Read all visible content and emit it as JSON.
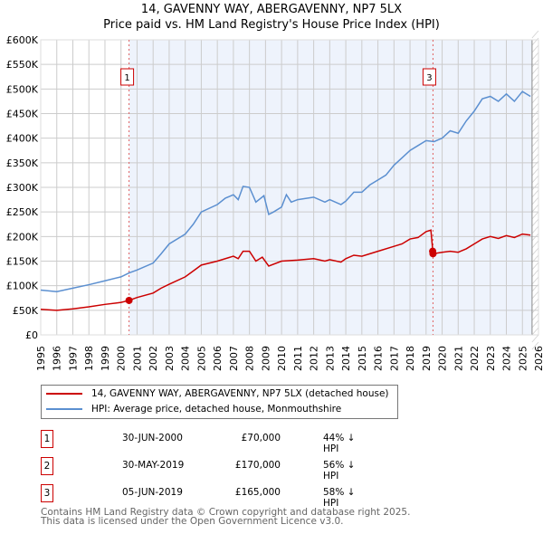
{
  "chart_data": {
    "type": "line",
    "title": "14, GAVENNY WAY, ABERGAVENNY, NP7 5LX",
    "subtitle": "Price paid vs. HM Land Registry's House Price Index (HPI)",
    "xlim": [
      1995,
      2026
    ],
    "ylim": [
      0,
      600000
    ],
    "x_ticks": [
      "1995",
      "1996",
      "1997",
      "1998",
      "1999",
      "2000",
      "2001",
      "2002",
      "2003",
      "2004",
      "2005",
      "2006",
      "2007",
      "2008",
      "2009",
      "2010",
      "2011",
      "2012",
      "2013",
      "2014",
      "2015",
      "2016",
      "2017",
      "2018",
      "2019",
      "2020",
      "2021",
      "2022",
      "2023",
      "2024",
      "2025",
      "2026"
    ],
    "y_ticks": [
      {
        "v": 0,
        "label": "£0"
      },
      {
        "v": 50000,
        "label": "£50K"
      },
      {
        "v": 100000,
        "label": "£100K"
      },
      {
        "v": 150000,
        "label": "£150K"
      },
      {
        "v": 200000,
        "label": "£200K"
      },
      {
        "v": 250000,
        "label": "£250K"
      },
      {
        "v": 300000,
        "label": "£300K"
      },
      {
        "v": 350000,
        "label": "£350K"
      },
      {
        "v": 400000,
        "label": "£400K"
      },
      {
        "v": 450000,
        "label": "£450K"
      },
      {
        "v": 500000,
        "label": "£500K"
      },
      {
        "v": 550000,
        "label": "£550K"
      },
      {
        "v": 600000,
        "label": "£600K"
      }
    ],
    "grid": true,
    "series": [
      {
        "name": "14, GAVENNY WAY, ABERGAVENNY, NP7 5LX (detached house)",
        "color": "#cc0000",
        "points": [
          [
            1995,
            52000
          ],
          [
            1996,
            50000
          ],
          [
            1997,
            53000
          ],
          [
            1998,
            57000
          ],
          [
            1999,
            62000
          ],
          [
            2000,
            66000
          ],
          [
            2000.5,
            70000
          ],
          [
            2001,
            76000
          ],
          [
            2002,
            85000
          ],
          [
            2002.5,
            95000
          ],
          [
            2003,
            103000
          ],
          [
            2004,
            118000
          ],
          [
            2004.5,
            130000
          ],
          [
            2005,
            142000
          ],
          [
            2006,
            150000
          ],
          [
            2007,
            160000
          ],
          [
            2007.3,
            155000
          ],
          [
            2007.6,
            170000
          ],
          [
            2008,
            170000
          ],
          [
            2008.4,
            150000
          ],
          [
            2008.8,
            158000
          ],
          [
            2009.2,
            140000
          ],
          [
            2010,
            150000
          ],
          [
            2011,
            152000
          ],
          [
            2012,
            155000
          ],
          [
            2012.7,
            150000
          ],
          [
            2013,
            153000
          ],
          [
            2013.7,
            148000
          ],
          [
            2014,
            155000
          ],
          [
            2014.5,
            162000
          ],
          [
            2015,
            160000
          ],
          [
            2016,
            170000
          ],
          [
            2017,
            180000
          ],
          [
            2017.5,
            185000
          ],
          [
            2018,
            195000
          ],
          [
            2018.5,
            198000
          ],
          [
            2019,
            210000
          ],
          [
            2019.3,
            213000
          ],
          [
            2019.42,
            170000
          ],
          [
            2019.43,
            165000
          ],
          [
            2020,
            168000
          ],
          [
            2020.5,
            170000
          ],
          [
            2021,
            168000
          ],
          [
            2021.5,
            175000
          ],
          [
            2022,
            185000
          ],
          [
            2022.5,
            195000
          ],
          [
            2023,
            200000
          ],
          [
            2023.5,
            196000
          ],
          [
            2024,
            202000
          ],
          [
            2024.5,
            198000
          ],
          [
            2025,
            205000
          ],
          [
            2025.5,
            203000
          ]
        ]
      },
      {
        "name": "HPI: Average price, detached house, Monmouthshire",
        "color": "#5b8fd0",
        "points": [
          [
            1995,
            91000
          ],
          [
            1996,
            88000
          ],
          [
            1997,
            95000
          ],
          [
            1998,
            102000
          ],
          [
            1999,
            110000
          ],
          [
            2000,
            118000
          ],
          [
            2000.5,
            126000
          ],
          [
            2001,
            132000
          ],
          [
            2002,
            146000
          ],
          [
            2002.5,
            165000
          ],
          [
            2003,
            185000
          ],
          [
            2004,
            205000
          ],
          [
            2004.5,
            225000
          ],
          [
            2005,
            250000
          ],
          [
            2006,
            265000
          ],
          [
            2006.5,
            278000
          ],
          [
            2007,
            285000
          ],
          [
            2007.3,
            275000
          ],
          [
            2007.6,
            302000
          ],
          [
            2008,
            300000
          ],
          [
            2008.4,
            270000
          ],
          [
            2008.9,
            283000
          ],
          [
            2009.2,
            245000
          ],
          [
            2009.5,
            250000
          ],
          [
            2010,
            260000
          ],
          [
            2010.3,
            285000
          ],
          [
            2010.6,
            270000
          ],
          [
            2011,
            275000
          ],
          [
            2012,
            280000
          ],
          [
            2012.7,
            270000
          ],
          [
            2013,
            275000
          ],
          [
            2013.7,
            265000
          ],
          [
            2014,
            272000
          ],
          [
            2014.5,
            290000
          ],
          [
            2015,
            290000
          ],
          [
            2015.5,
            305000
          ],
          [
            2016,
            315000
          ],
          [
            2016.5,
            325000
          ],
          [
            2017,
            345000
          ],
          [
            2017.5,
            360000
          ],
          [
            2018,
            375000
          ],
          [
            2018.5,
            385000
          ],
          [
            2019,
            395000
          ],
          [
            2019.5,
            393000
          ],
          [
            2020,
            400000
          ],
          [
            2020.5,
            415000
          ],
          [
            2021,
            410000
          ],
          [
            2021.5,
            435000
          ],
          [
            2022,
            455000
          ],
          [
            2022.5,
            480000
          ],
          [
            2023,
            485000
          ],
          [
            2023.5,
            475000
          ],
          [
            2024,
            490000
          ],
          [
            2024.5,
            475000
          ],
          [
            2025,
            495000
          ],
          [
            2025.5,
            485000
          ]
        ]
      }
    ],
    "sales": [
      {
        "id": "1",
        "x": 2000.5,
        "y": 70000,
        "label_shown": true
      },
      {
        "id": "2",
        "x": 2019.41,
        "y": 170000,
        "label_shown": false
      },
      {
        "id": "3",
        "x": 2019.43,
        "y": 165000,
        "label_shown": true
      }
    ],
    "shaded_from": 2000.5,
    "data_end": 2025.6,
    "legend_position": "below"
  },
  "legend": {
    "items": [
      "14, GAVENNY WAY, ABERGAVENNY, NP7 5LX (detached house)",
      "HPI: Average price, detached house, Monmouthshire"
    ]
  },
  "transactions": [
    {
      "num": "1",
      "date": "30-JUN-2000",
      "price": "£70,000",
      "hpi": "44% ↓ HPI"
    },
    {
      "num": "2",
      "date": "30-MAY-2019",
      "price": "£170,000",
      "hpi": "56% ↓ HPI"
    },
    {
      "num": "3",
      "date": "05-JUN-2019",
      "price": "£165,000",
      "hpi": "58% ↓ HPI"
    }
  ],
  "footer": {
    "line1": "Contains HM Land Registry data © Crown copyright and database right 2025.",
    "line2": "This data is licensed under the Open Government Licence v3.0."
  }
}
